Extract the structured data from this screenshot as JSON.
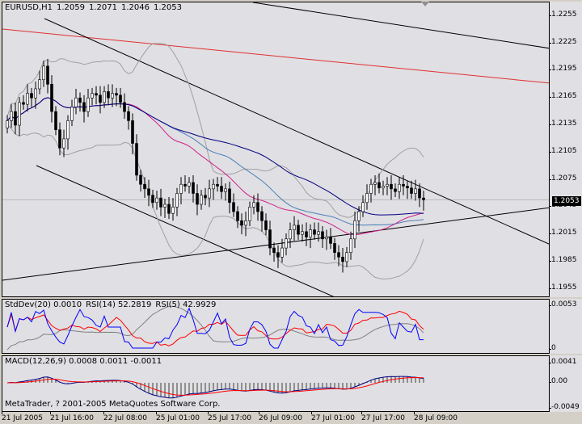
{
  "main": {
    "symbol": "EURUSD,H1",
    "open": "1.2059",
    "high": "1.2071",
    "low": "1.2046",
    "close": "1.2053",
    "current_price": "1.2053",
    "price_ticks": [
      "1.2255",
      "1.2225",
      "1.2195",
      "1.2165",
      "1.2135",
      "1.2105",
      "1.2075",
      "1.2045",
      "1.2015",
      "1.1985",
      "1.1955"
    ],
    "price_range": [
      1.1945,
      1.227
    ]
  },
  "indicator1": {
    "stddev_label": "StdDev(20) 0.0010",
    "rsi14_label": "RSI(14) 52.2819",
    "rsi5_label": "RSI(5) 42.9929",
    "ticks": [
      "0.0053",
      "0"
    ]
  },
  "indicator2": {
    "macd_label": "MACD(12,26,9) 0.0008 0.0011 -0.0011",
    "ticks": [
      "0.0041",
      "0.00",
      "-0.0049"
    ],
    "copyright": "MetaTrader, ? 2001-2005 MetaQuotes Software Corp."
  },
  "time_axis": [
    "21 Jul 2005",
    "21 Jul 16:00",
    "22 Jul 08:00",
    "25 Jul 01:00",
    "25 Jul 17:00",
    "26 Jul 09:00",
    "27 Jul 01:00",
    "27 Jul 17:00",
    "28 Jul 09:00"
  ],
  "colors": {
    "background": "#e0dfe3",
    "frame": "#d4d0c8",
    "candle_up": "#ffffff",
    "candle_down": "#000000",
    "ma_blue": "#000080",
    "ma_lightblue": "#4a7fb8",
    "ma_pink": "#d0208a",
    "trend_red": "#e03030",
    "bollinger": "#a0a0a0",
    "stddev_blue": "#0000ff",
    "rsi_red": "#ff0000",
    "histogram": "#909090"
  },
  "chart_data": {
    "type": "candlestick",
    "symbol": "EURUSD",
    "timeframe": "H1",
    "ohlc_last": {
      "open": 1.2059,
      "high": 1.2071,
      "low": 1.2046,
      "close": 1.2053
    },
    "close_series": [
      1.214,
      1.215,
      1.2135,
      1.216,
      1.2158,
      1.217,
      1.2165,
      1.2175,
      1.2185,
      1.22,
      1.218,
      1.215,
      1.213,
      1.211,
      1.212,
      1.214,
      1.2155,
      1.2165,
      1.216,
      1.215,
      1.2165,
      1.217,
      1.2168,
      1.216,
      1.2172,
      1.2165,
      1.217,
      1.2168,
      1.216,
      1.215,
      1.214,
      1.2115,
      1.208,
      1.207,
      1.2065,
      1.2058,
      1.205,
      1.2055,
      1.2045,
      1.2048,
      1.2038,
      1.2045,
      1.206,
      1.207,
      1.2068,
      1.2072,
      1.206,
      1.2048,
      1.2058,
      1.2055,
      1.2065,
      1.207,
      1.2068,
      1.2062,
      1.2065,
      1.205,
      1.204,
      1.203,
      1.2025,
      1.203,
      1.2045,
      1.205,
      1.204,
      1.203,
      1.202,
      1.2,
      1.1995,
      1.199,
      1.2,
      1.201,
      1.202,
      1.2025,
      1.2015,
      1.2018,
      1.2012,
      1.202,
      1.2015,
      1.2018,
      1.201,
      1.2012,
      1.2005,
      1.1995,
      1.199,
      1.1985,
      1.1995,
      1.201,
      1.203,
      1.204,
      1.205,
      1.206,
      1.207,
      1.2072,
      1.2066,
      1.2068,
      1.207,
      1.2065,
      1.2062,
      1.207,
      1.2068,
      1.2066,
      1.206,
      1.2065,
      1.2055,
      1.2053
    ],
    "bollinger_upper_note": "gray band around price",
    "trendlines": "channel, blue and pink moving averages, red trend line"
  }
}
